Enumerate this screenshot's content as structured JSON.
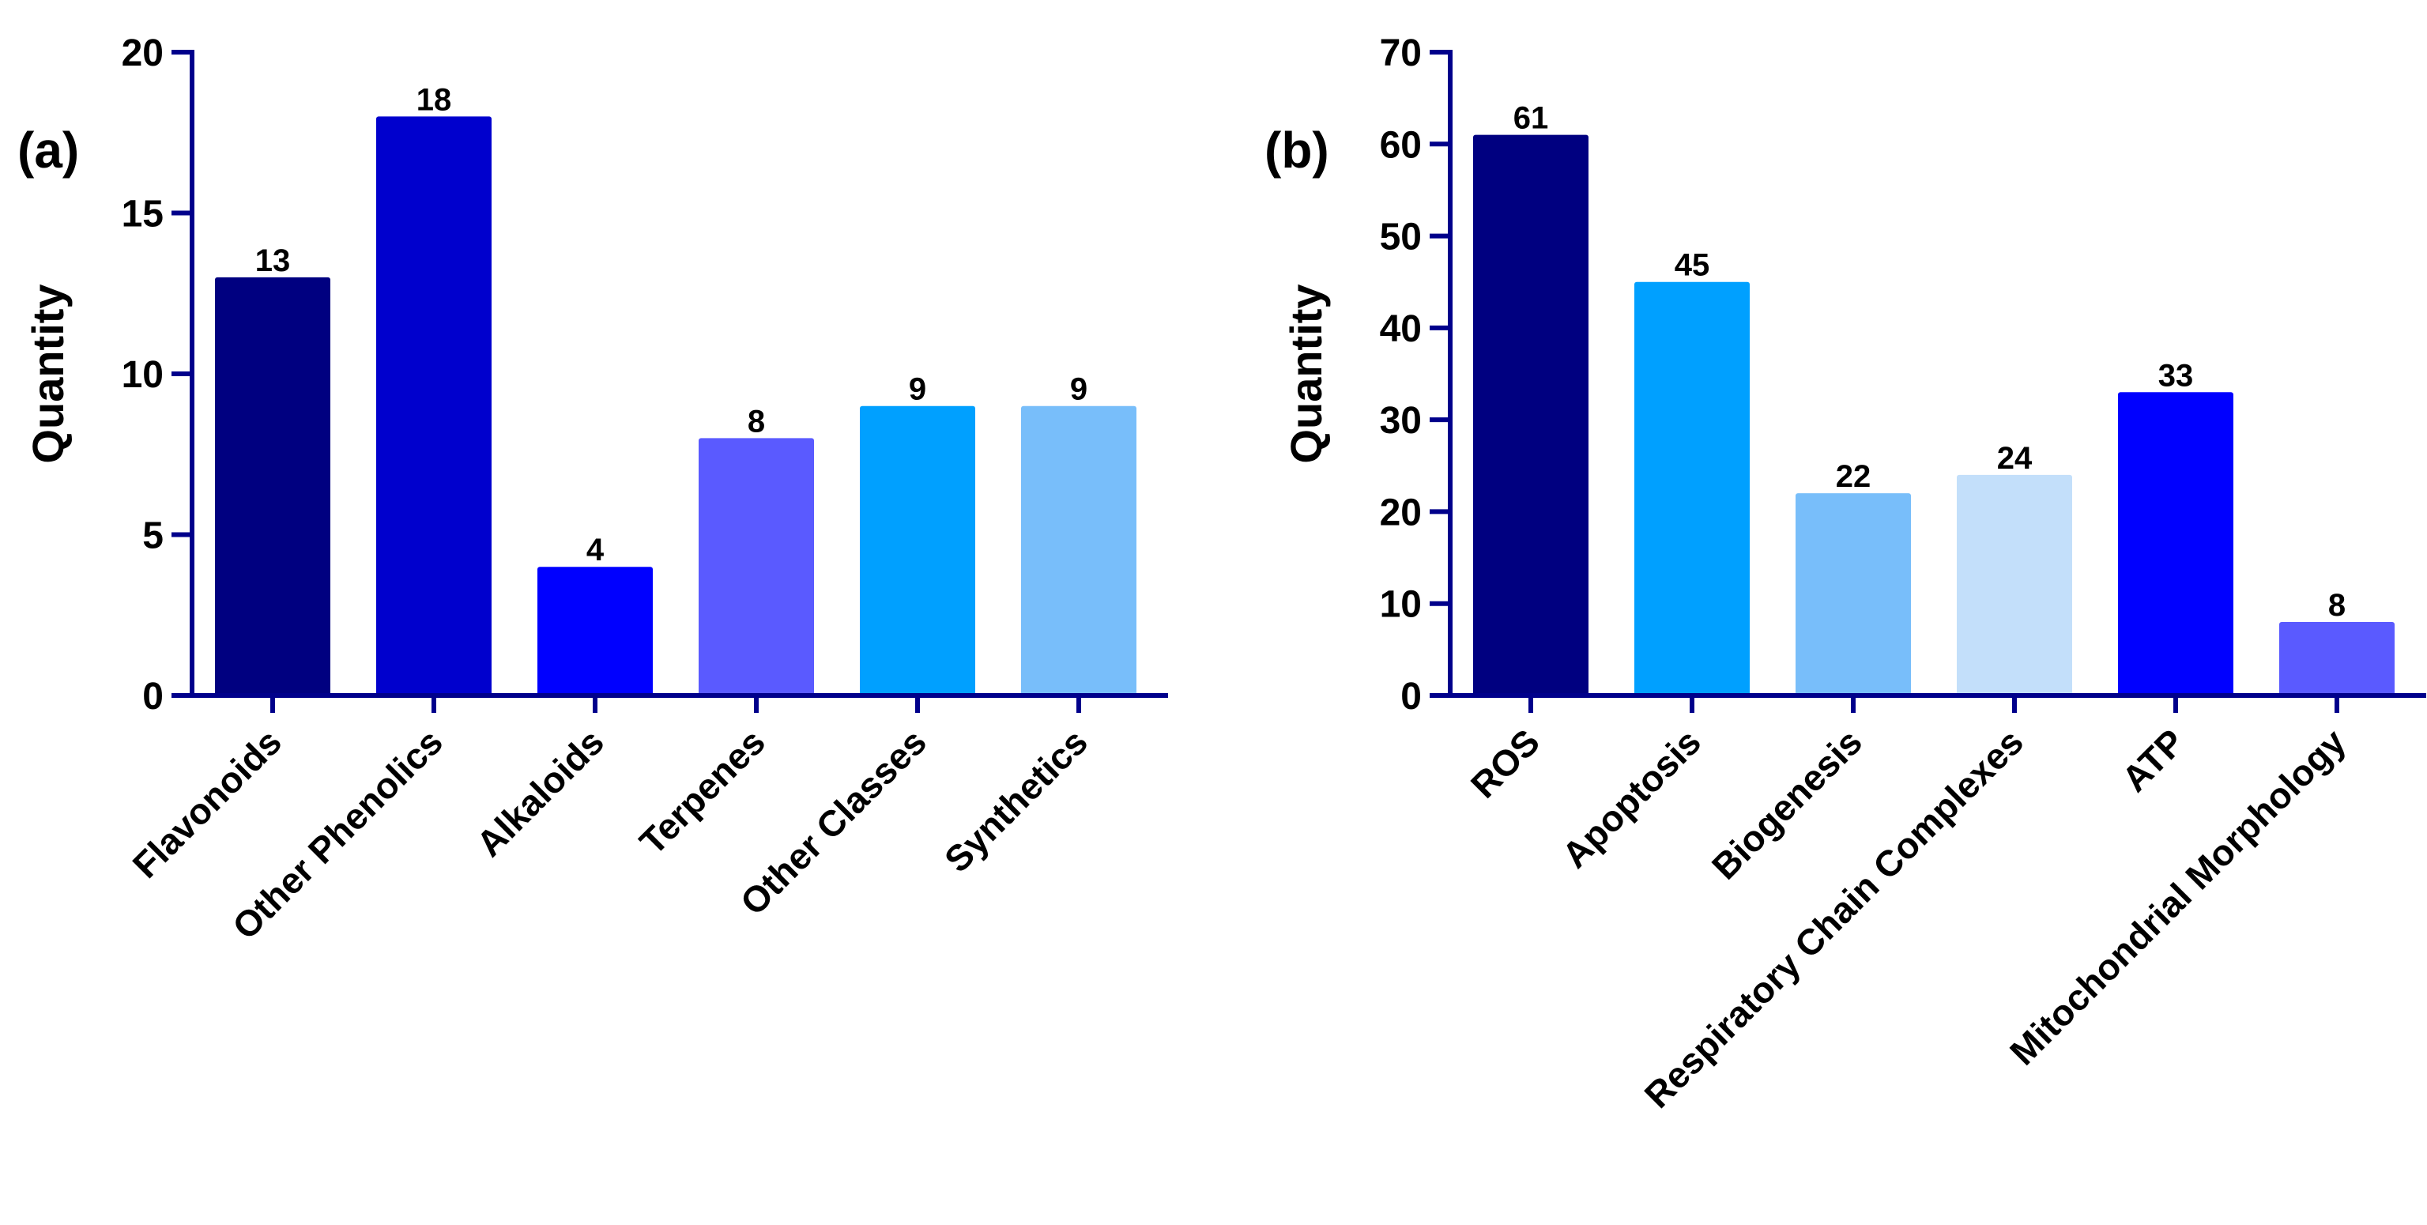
{
  "axis_color": "#00008B",
  "chart_data": [
    {
      "type": "bar",
      "panel_label": "(a)",
      "ylabel": "Quantity",
      "xlabel": "",
      "ylim": [
        0,
        20
      ],
      "yticks": [
        0,
        5,
        10,
        15,
        20
      ],
      "categories": [
        "Flavonoids",
        "Other Phenolics",
        "Alkaloids",
        "Terpenes",
        "Other Classes",
        "Synthetics"
      ],
      "values": [
        13,
        18,
        4,
        8,
        9,
        9
      ],
      "data_labels": [
        "13",
        "18",
        "4",
        "8",
        "9",
        "9"
      ],
      "colors": [
        "#000080",
        "#0000CD",
        "#0000FF",
        "#5A5AFF",
        "#00A0FF",
        "#78BEFA"
      ]
    },
    {
      "type": "bar",
      "panel_label": "(b)",
      "ylabel": "Quantity",
      "xlabel": "",
      "ylim": [
        0,
        70
      ],
      "yticks": [
        0,
        10,
        20,
        30,
        40,
        50,
        60,
        70
      ],
      "categories": [
        "ROS",
        "Apoptosis",
        "Biogenesis",
        "Respiratory Chain Complexes",
        "ATP",
        "Mitochondrial Morphology"
      ],
      "values": [
        61,
        45,
        22,
        24,
        33,
        8
      ],
      "data_labels": [
        "61",
        "45",
        "22",
        "24",
        "33",
        "8"
      ],
      "colors": [
        "#000080",
        "#00A0FF",
        "#78BEFA",
        "#C3DFFA",
        "#0000FF",
        "#5A5AFF"
      ]
    }
  ]
}
